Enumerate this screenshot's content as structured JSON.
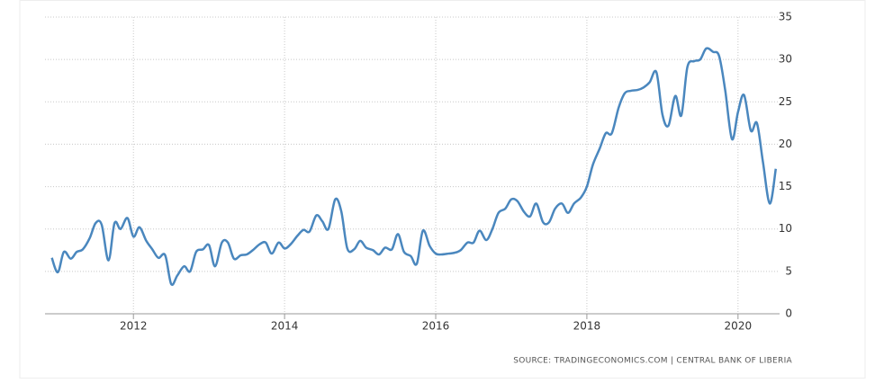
{
  "chart_data": {
    "type": "line",
    "source": "SOURCE: TRADINGECONOMICS.COM | CENTRAL BANK OF LIBERIA",
    "x": [
      2010.92,
      2011.0,
      2011.08,
      2011.17,
      2011.25,
      2011.33,
      2011.42,
      2011.5,
      2011.58,
      2011.67,
      2011.75,
      2011.83,
      2011.92,
      2012.0,
      2012.08,
      2012.17,
      2012.25,
      2012.33,
      2012.42,
      2012.5,
      2012.58,
      2012.67,
      2012.75,
      2012.83,
      2012.92,
      2013.0,
      2013.08,
      2013.17,
      2013.25,
      2013.33,
      2013.42,
      2013.5,
      2013.58,
      2013.67,
      2013.75,
      2013.83,
      2013.92,
      2014.0,
      2014.08,
      2014.17,
      2014.25,
      2014.33,
      2014.42,
      2014.5,
      2014.58,
      2014.67,
      2014.75,
      2014.83,
      2014.92,
      2015.0,
      2015.08,
      2015.17,
      2015.25,
      2015.33,
      2015.42,
      2015.5,
      2015.58,
      2015.67,
      2015.75,
      2015.83,
      2015.92,
      2016.0,
      2016.08,
      2016.17,
      2016.25,
      2016.33,
      2016.42,
      2016.5,
      2016.58,
      2016.67,
      2016.75,
      2016.83,
      2016.92,
      2017.0,
      2017.08,
      2017.17,
      2017.25,
      2017.33,
      2017.42,
      2017.5,
      2017.58,
      2017.67,
      2017.75,
      2017.83,
      2017.92,
      2018.0,
      2018.08,
      2018.17,
      2018.25,
      2018.33,
      2018.42,
      2018.5,
      2018.58,
      2018.67,
      2018.75,
      2018.83,
      2018.92,
      2019.0,
      2019.08,
      2019.17,
      2019.25,
      2019.33,
      2019.42,
      2019.5,
      2019.58,
      2019.67,
      2019.75,
      2019.83,
      2019.92,
      2020.0,
      2020.08,
      2020.17,
      2020.25,
      2020.33,
      2020.42,
      2020.5
    ],
    "series": [
      {
        "color": "#4a87be",
        "values": [
          6.6,
          4.9,
          7.3,
          6.5,
          7.3,
          7.6,
          8.9,
          10.7,
          10.5,
          6.3,
          10.7,
          10.0,
          11.3,
          9.1,
          10.2,
          8.6,
          7.6,
          6.6,
          6.9,
          3.5,
          4.5,
          5.6,
          5.0,
          7.3,
          7.6,
          8.1,
          5.6,
          8.4,
          8.4,
          6.5,
          6.9,
          7.0,
          7.5,
          8.2,
          8.4,
          7.1,
          8.4,
          7.7,
          8.2,
          9.2,
          9.9,
          9.7,
          11.6,
          10.9,
          10.0,
          13.5,
          12.1,
          7.7,
          7.6,
          8.6,
          7.8,
          7.5,
          7.0,
          7.8,
          7.6,
          9.4,
          7.3,
          6.8,
          5.9,
          9.8,
          8.0,
          7.1,
          7.0,
          7.1,
          7.2,
          7.5,
          8.4,
          8.4,
          9.8,
          8.7,
          10.0,
          11.9,
          12.4,
          13.5,
          13.3,
          12.0,
          11.5,
          13.0,
          10.8,
          10.8,
          12.4,
          13.0,
          11.9,
          13.0,
          13.7,
          15.0,
          17.6,
          19.5,
          21.3,
          21.3,
          24.3,
          26.0,
          26.3,
          26.4,
          26.7,
          27.3,
          28.5,
          23.5,
          22.2,
          25.7,
          23.4,
          29.1,
          29.8,
          30.0,
          31.3,
          30.9,
          30.4,
          26.4,
          20.6,
          23.8,
          25.8,
          21.6,
          22.5,
          17.9,
          13.0,
          17.1
        ]
      }
    ],
    "xlim": [
      2010.83,
      2020.55
    ],
    "xticks": [
      2012,
      2014,
      2016,
      2018,
      2020
    ],
    "ylim": [
      0,
      35
    ],
    "yticks": [
      0,
      5,
      10,
      15,
      20,
      25,
      30,
      35
    ],
    "grid": true
  }
}
